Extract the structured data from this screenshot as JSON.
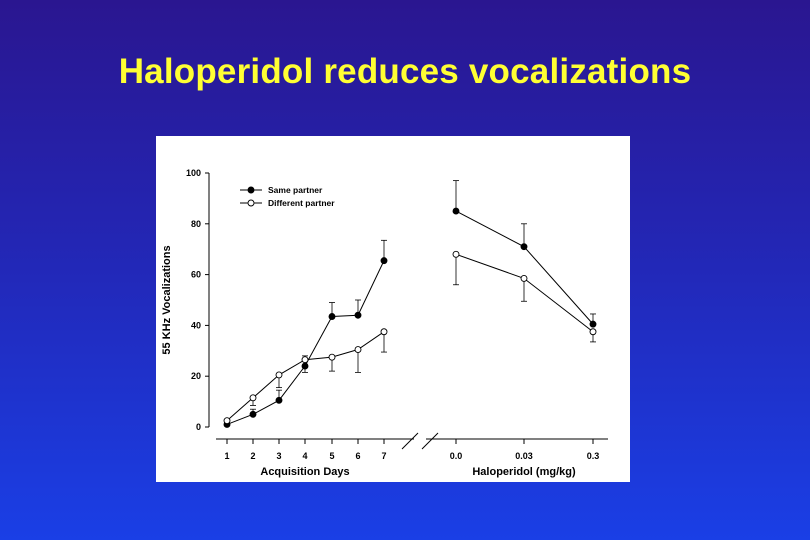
{
  "slide": {
    "title": "Haloperidol reduces vocalizations"
  },
  "chart_data": {
    "type": "line",
    "ylabel": "55 KHz Vocalizations",
    "ylim": [
      0,
      100
    ],
    "yticks": [
      0,
      20,
      40,
      60,
      80,
      100
    ],
    "grid": false,
    "legend_position": "top-left",
    "panels": [
      {
        "xlabel": "Acquisition Days",
        "x": [
          "1",
          "2",
          "3",
          "4",
          "5",
          "6",
          "7"
        ],
        "series": [
          {
            "name": "Same partner",
            "marker": "filled-circle",
            "values": [
              1,
              5,
              10.5,
              24,
              43.5,
              44,
              65.5
            ],
            "errors": [
              1,
              2,
              4,
              4,
              5.5,
              6,
              8
            ]
          },
          {
            "name": "Different partner",
            "marker": "open-circle",
            "values": [
              2.5,
              11.5,
              20.5,
              26.5,
              27.5,
              30.5,
              37.5
            ],
            "errors": [
              1,
              3,
              5,
              5,
              5.5,
              9,
              8
            ]
          }
        ]
      },
      {
        "xlabel": "Haloperidol (mg/kg)",
        "x": [
          "0.0",
          "0.03",
          "0.3"
        ],
        "series": [
          {
            "name": "Same partner",
            "marker": "filled-circle",
            "values": [
              85,
              71,
              40.5
            ],
            "errors": [
              12,
              9,
              4
            ]
          },
          {
            "name": "Different partner",
            "marker": "open-circle",
            "values": [
              68,
              58.5,
              37.5
            ],
            "errors": [
              12,
              9,
              4
            ]
          }
        ]
      }
    ]
  }
}
